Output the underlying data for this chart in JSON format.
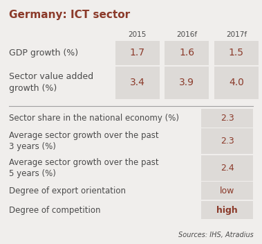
{
  "title": "Germany: ICT sector",
  "bg_color": "#f0eeec",
  "cell_bg": "#dddad7",
  "title_color": "#8b3a2a",
  "header_years": [
    "2015",
    "2016f",
    "2017f"
  ],
  "row1_label": "GDP growth (%)",
  "row1_values": [
    "1.7",
    "1.6",
    "1.5"
  ],
  "row2_label": "Sector value added\ngrowth (%)",
  "row2_values": [
    "3.4",
    "3.9",
    "4.0"
  ],
  "bottom_rows": [
    {
      "label": "Sector share in the national economy (%)",
      "value": "2.3"
    },
    {
      "label": "Average sector growth over the past\n3 years (%)",
      "value": "2.3"
    },
    {
      "label": "Average sector growth over the past\n5 years (%)",
      "value": "2.4"
    },
    {
      "label": "Degree of export orientation",
      "value": "low"
    },
    {
      "label": "Degree of competition",
      "value": "high"
    }
  ],
  "source_text": "Sources: IHS, Atradius",
  "value_color": "#8b3a2a",
  "label_color": "#4a4a4a",
  "divider_color": "#a0a0a0",
  "high_bold": true
}
